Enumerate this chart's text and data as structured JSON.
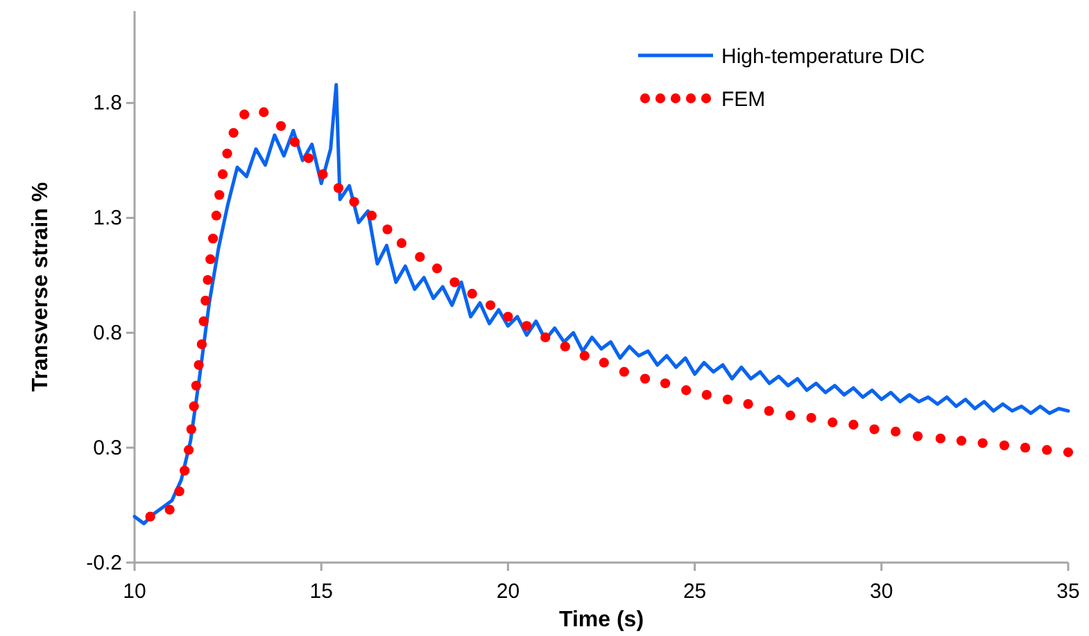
{
  "chart_data": {
    "type": "line",
    "xlabel": "Time (s)",
    "ylabel": "Transverse strain %",
    "xlim": [
      10,
      35
    ],
    "xticks": [
      10,
      15,
      20,
      25,
      30,
      35
    ],
    "ylim": [
      -0.2,
      2.2
    ],
    "yticks": [
      -0.2,
      0.3,
      0.8,
      1.3,
      1.8
    ],
    "grid": false,
    "legend": "top right",
    "series": [
      {
        "name": "High-temperature DIC",
        "color": "#0a64f0",
        "line_style": "solid",
        "x": [
          10.0,
          10.25,
          10.5,
          10.75,
          11.0,
          11.25,
          11.5,
          11.75,
          12.0,
          12.25,
          12.5,
          12.75,
          13.0,
          13.25,
          13.5,
          13.75,
          14.0,
          14.25,
          14.5,
          14.75,
          15.0,
          15.25,
          15.4,
          15.5,
          15.75,
          16.0,
          16.25,
          16.5,
          16.75,
          17.0,
          17.25,
          17.5,
          17.75,
          18.0,
          18.25,
          18.5,
          18.75,
          19.0,
          19.25,
          19.5,
          19.75,
          20.0,
          20.25,
          20.5,
          20.75,
          21.0,
          21.25,
          21.5,
          21.75,
          22.0,
          22.25,
          22.5,
          22.75,
          23.0,
          23.25,
          23.5,
          23.75,
          24.0,
          24.25,
          24.5,
          24.75,
          25.0,
          25.25,
          25.5,
          25.75,
          26.0,
          26.25,
          26.5,
          26.75,
          27.0,
          27.25,
          27.5,
          27.75,
          28.0,
          28.25,
          28.5,
          28.75,
          29.0,
          29.25,
          29.5,
          29.75,
          30.0,
          30.25,
          30.5,
          30.75,
          31.0,
          31.25,
          31.5,
          31.75,
          32.0,
          32.25,
          32.5,
          32.75,
          33.0,
          33.25,
          33.5,
          33.75,
          34.0,
          34.25,
          34.5,
          34.75,
          35.0
        ],
        "values": [
          0.0,
          -0.03,
          0.01,
          0.04,
          0.07,
          0.16,
          0.33,
          0.62,
          0.93,
          1.17,
          1.36,
          1.52,
          1.48,
          1.6,
          1.53,
          1.66,
          1.57,
          1.68,
          1.55,
          1.62,
          1.45,
          1.6,
          1.88,
          1.38,
          1.44,
          1.28,
          1.33,
          1.1,
          1.18,
          1.02,
          1.09,
          0.99,
          1.04,
          0.95,
          1.0,
          0.92,
          1.02,
          0.87,
          0.93,
          0.84,
          0.9,
          0.83,
          0.87,
          0.79,
          0.85,
          0.77,
          0.82,
          0.76,
          0.8,
          0.72,
          0.78,
          0.73,
          0.76,
          0.69,
          0.74,
          0.7,
          0.72,
          0.66,
          0.7,
          0.65,
          0.69,
          0.62,
          0.67,
          0.63,
          0.66,
          0.6,
          0.65,
          0.6,
          0.63,
          0.58,
          0.61,
          0.57,
          0.6,
          0.55,
          0.58,
          0.54,
          0.57,
          0.53,
          0.56,
          0.52,
          0.55,
          0.51,
          0.54,
          0.5,
          0.53,
          0.5,
          0.52,
          0.49,
          0.52,
          0.48,
          0.51,
          0.47,
          0.5,
          0.46,
          0.49,
          0.46,
          0.48,
          0.45,
          0.48,
          0.45,
          0.47,
          0.46
        ]
      },
      {
        "name": "FEM",
        "type": "scatter",
        "color": "#ff0000",
        "marker": "circle",
        "x": [
          10.42,
          10.94,
          11.2,
          11.34,
          11.45,
          11.52,
          11.59,
          11.65,
          11.72,
          11.8,
          11.85,
          11.9,
          11.96,
          12.03,
          12.1,
          12.19,
          12.27,
          12.36,
          12.48,
          12.65,
          12.94,
          13.46,
          13.92,
          14.29,
          14.66,
          15.04,
          15.46,
          15.88,
          16.35,
          16.77,
          17.15,
          17.64,
          18.1,
          18.57,
          19.04,
          19.53,
          20.0,
          20.5,
          21.0,
          21.53,
          22.05,
          22.57,
          23.11,
          23.67,
          24.21,
          24.77,
          25.32,
          25.88,
          26.43,
          26.99,
          27.56,
          28.12,
          28.69,
          29.25,
          29.81,
          30.38,
          30.97,
          31.58,
          32.14,
          32.71,
          33.29,
          33.85,
          34.43,
          35.0
        ],
        "values": [
          0.0,
          0.03,
          0.11,
          0.2,
          0.29,
          0.38,
          0.48,
          0.57,
          0.66,
          0.75,
          0.85,
          0.94,
          1.03,
          1.12,
          1.21,
          1.31,
          1.4,
          1.49,
          1.58,
          1.67,
          1.75,
          1.76,
          1.7,
          1.63,
          1.56,
          1.49,
          1.43,
          1.37,
          1.31,
          1.25,
          1.19,
          1.13,
          1.08,
          1.02,
          0.97,
          0.92,
          0.87,
          0.83,
          0.78,
          0.74,
          0.7,
          0.67,
          0.63,
          0.6,
          0.58,
          0.55,
          0.53,
          0.51,
          0.49,
          0.46,
          0.44,
          0.43,
          0.41,
          0.4,
          0.38,
          0.37,
          0.35,
          0.34,
          0.33,
          0.32,
          0.31,
          0.3,
          0.29,
          0.28
        ]
      }
    ]
  }
}
